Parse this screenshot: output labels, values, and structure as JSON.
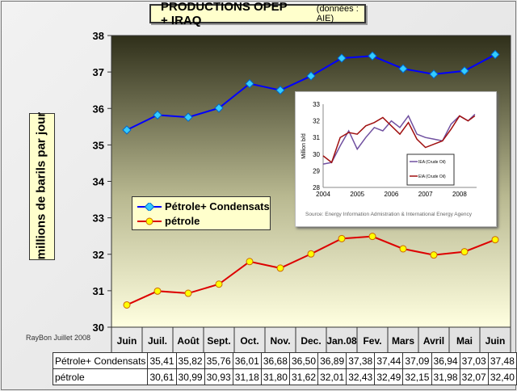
{
  "title": "PRODUCTIONS OPEP  + IRAQ",
  "subtitle": "(données : AIE)",
  "credit": "RayBon Juillet 2008",
  "colors": {
    "series1": "#0000ff",
    "series1_marker": "#33ccff",
    "series2": "#dd0000",
    "series2_marker": "#ffff00",
    "plot_top": "#3a3a20",
    "plot_bottom": "#ffffdd"
  },
  "chart_data": {
    "type": "line",
    "title": "PRODUCTIONS OPEP  + IRAQ",
    "ylabel": "millions de barils par jour",
    "ylim": [
      30,
      38
    ],
    "yticks": [
      "30",
      "31",
      "32",
      "33",
      "34",
      "35",
      "36",
      "37",
      "38"
    ],
    "categories": [
      "Juin",
      "Juil.",
      "Août",
      "Sept.",
      "Oct.",
      "Nov.",
      "Dec.",
      "Jan.08",
      "Fev.",
      "Mars",
      "Avril",
      "Mai",
      "Juin"
    ],
    "legend_position": "center-left",
    "series": [
      {
        "name": "Pétrole+ Condensats",
        "values": [
          35.41,
          35.82,
          35.76,
          36.01,
          36.68,
          36.5,
          36.89,
          37.38,
          37.44,
          37.09,
          36.94,
          37.03,
          37.48
        ],
        "labels": [
          "35,41",
          "35,82",
          "35,76",
          "36,01",
          "36,68",
          "36,50",
          "36,89",
          "37,38",
          "37,44",
          "37,09",
          "36,94",
          "37,03",
          "37,48"
        ]
      },
      {
        "name": "pétrole",
        "values": [
          30.61,
          30.99,
          30.93,
          31.18,
          31.8,
          31.62,
          32.01,
          32.43,
          32.49,
          32.15,
          31.98,
          32.07,
          32.4
        ],
        "labels": [
          "30,61",
          "30,99",
          "30,93",
          "31,18",
          "31,80",
          "31,62",
          "32,01",
          "32,43",
          "32,49",
          "32,15",
          "31,98",
          "32,07",
          "32,40"
        ]
      }
    ],
    "inset": {
      "type": "line",
      "ylabel": "Million b/d",
      "ylim": [
        28,
        33
      ],
      "yticks": [
        "28",
        "29",
        "30",
        "31",
        "32",
        "33"
      ],
      "xticks": [
        "2004",
        "2005",
        "2006",
        "2007",
        "2008"
      ],
      "source": "Source:  Energy Information Admistration & International Energy Agency",
      "series": [
        {
          "name": "IEA (Crude Oil)",
          "x": [
            2004,
            2004.25,
            2004.5,
            2004.75,
            2005,
            2005.25,
            2005.5,
            2005.75,
            2006,
            2006.25,
            2006.5,
            2006.75,
            2007,
            2007.25,
            2007.5,
            2007.75,
            2008,
            2008.25,
            2008.45
          ],
          "values": [
            29.4,
            29.5,
            30.5,
            31.4,
            30.3,
            31.0,
            31.6,
            31.4,
            32.0,
            31.6,
            32.3,
            31.2,
            31.0,
            30.9,
            30.8,
            31.8,
            32.3,
            32.0,
            32.4
          ]
        },
        {
          "name": "EIA (Crude Oil)",
          "x": [
            2004,
            2004.25,
            2004.5,
            2004.75,
            2005,
            2005.25,
            2005.5,
            2005.75,
            2006,
            2006.25,
            2006.5,
            2006.75,
            2007,
            2007.25,
            2007.5,
            2007.75,
            2008,
            2008.25,
            2008.45
          ],
          "values": [
            29.9,
            29.5,
            31.0,
            31.3,
            31.2,
            31.7,
            31.9,
            32.2,
            31.7,
            31.2,
            31.9,
            30.9,
            30.4,
            30.6,
            30.8,
            31.5,
            32.3,
            32.0,
            32.3
          ]
        }
      ]
    }
  }
}
